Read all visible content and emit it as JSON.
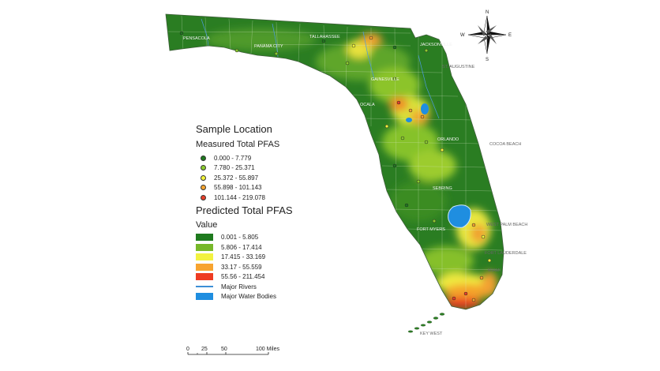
{
  "legend": {
    "sample_title": "Sample Location",
    "measured_title": "Measured Total PFAS",
    "measured_classes": [
      {
        "label": "0.000 - 7.779",
        "color": "#1f7a1f"
      },
      {
        "label": "7.780 - 25.371",
        "color": "#8ccc2e"
      },
      {
        "label": "25.372 - 55.897",
        "color": "#f3f53a"
      },
      {
        "label": "55.898 - 101.143",
        "color": "#f7a530"
      },
      {
        "label": "101.144 - 219.078",
        "color": "#e8402a"
      }
    ],
    "predicted_title": "Predicted Total PFAS",
    "value_label": "Value",
    "predicted_classes": [
      {
        "label": "0.001 - 5.805",
        "color": "#1e7a1e"
      },
      {
        "label": "5.806 - 17.414",
        "color": "#77b82a"
      },
      {
        "label": "17.415 - 33.169",
        "color": "#f2f240"
      },
      {
        "label": "33.17 - 55.559",
        "color": "#f7a430"
      },
      {
        "label": "55.56 - 211.454",
        "color": "#ee3b22"
      }
    ],
    "rivers_label": "Major Rivers",
    "water_label": "Major Water Bodies"
  },
  "compass": {
    "n": "N",
    "s": "S",
    "e": "E",
    "w": "W"
  },
  "scale": {
    "ticks": [
      "0",
      "25",
      "50",
      "100 Miles"
    ]
  },
  "cities": [
    "PENSACOLA",
    "PANAMA CITY",
    "TALLAHASSEE",
    "JACKSONVILLE",
    "ST. AUGUSTINE",
    "GAINESVILLE",
    "OCALA",
    "ORLANDO",
    "COCOA BEACH",
    "SEBRING",
    "FORT MYERS",
    "WEST PALM BEACH",
    "FORT LAUDERDALE",
    "MIAMI",
    "KEY WEST"
  ]
}
